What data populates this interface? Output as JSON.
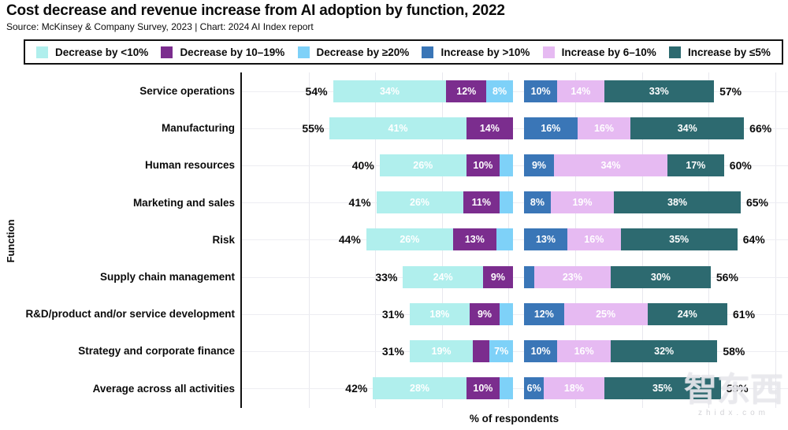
{
  "chart_data": {
    "type": "bar",
    "variant": "horizontal-diverging-stacked",
    "title": "Cost decrease and revenue increase from AI adoption by function, 2022",
    "source": "Source: McKinsey & Company Survey, 2023 | Chart: 2024 AI Index report",
    "xlabel": "% of respondents",
    "ylabel": "Function",
    "unit": "%",
    "axis_range_pct": [
      0,
      80
    ],
    "gridline_step_pct": 20,
    "grid": true,
    "legend_position": "top",
    "legend": [
      {
        "key": "decrease_lt10",
        "label": "Decrease by <10%",
        "color": "#b0efed"
      },
      {
        "key": "decrease_10_19",
        "label": "Decrease by 10–19%",
        "color": "#7b2d8e"
      },
      {
        "key": "decrease_ge20",
        "label": "Decrease by ≥20%",
        "color": "#7ed1f8"
      },
      {
        "key": "increase_gt10",
        "label": "Increase by >10%",
        "color": "#3a76b7"
      },
      {
        "key": "increase_6_10",
        "label": "Increase by 6–10%",
        "color": "#e6baf2"
      },
      {
        "key": "increase_le5",
        "label": "Increase by ≤5%",
        "color": "#2d6a70"
      }
    ],
    "categories": [
      "Service operations",
      "Manufacturing",
      "Human resources",
      "Marketing and sales",
      "Risk",
      "Supply chain management",
      "R&D/product and/or service development",
      "Strategy and corporate finance",
      "Average across all activities"
    ],
    "rows": [
      {
        "function": "Service operations",
        "decrease": {
          "total": 54,
          "total_label": "54%",
          "segments": [
            {
              "key": "decrease_lt10",
              "value": 34,
              "label": "34%"
            },
            {
              "key": "decrease_10_19",
              "value": 12,
              "label": "12%"
            },
            {
              "key": "decrease_ge20",
              "value": 8,
              "label": "8%"
            }
          ]
        },
        "increase": {
          "total": 57,
          "total_label": "57%",
          "segments": [
            {
              "key": "increase_gt10",
              "value": 10,
              "label": "10%"
            },
            {
              "key": "increase_6_10",
              "value": 14,
              "label": "14%"
            },
            {
              "key": "increase_le5",
              "value": 33,
              "label": "33%"
            }
          ]
        }
      },
      {
        "function": "Manufacturing",
        "decrease": {
          "total": 55,
          "total_label": "55%",
          "segments": [
            {
              "key": "decrease_lt10",
              "value": 41,
              "label": "41%"
            },
            {
              "key": "decrease_10_19",
              "value": 14,
              "label": "14%"
            }
          ]
        },
        "increase": {
          "total": 66,
          "total_label": "66%",
          "segments": [
            {
              "key": "increase_gt10",
              "value": 16,
              "label": "16%"
            },
            {
              "key": "increase_6_10",
              "value": 16,
              "label": "16%"
            },
            {
              "key": "increase_le5",
              "value": 34,
              "label": "34%"
            }
          ]
        }
      },
      {
        "function": "Human resources",
        "decrease": {
          "total": 40,
          "total_label": "40%",
          "segments": [
            {
              "key": "decrease_lt10",
              "value": 26,
              "label": "26%"
            },
            {
              "key": "decrease_10_19",
              "value": 10,
              "label": "10%"
            },
            {
              "key": "decrease_ge20",
              "value": 4,
              "label": ""
            }
          ]
        },
        "increase": {
          "total": 60,
          "total_label": "60%",
          "segments": [
            {
              "key": "increase_gt10",
              "value": 9,
              "label": "9%"
            },
            {
              "key": "increase_6_10",
              "value": 34,
              "label": "34%"
            },
            {
              "key": "increase_le5",
              "value": 17,
              "label": "17%"
            }
          ]
        }
      },
      {
        "function": "Marketing and sales",
        "decrease": {
          "total": 41,
          "total_label": "41%",
          "segments": [
            {
              "key": "decrease_lt10",
              "value": 26,
              "label": "26%"
            },
            {
              "key": "decrease_10_19",
              "value": 11,
              "label": "11%"
            },
            {
              "key": "decrease_ge20",
              "value": 4,
              "label": ""
            }
          ]
        },
        "increase": {
          "total": 65,
          "total_label": "65%",
          "segments": [
            {
              "key": "increase_gt10",
              "value": 8,
              "label": "8%"
            },
            {
              "key": "increase_6_10",
              "value": 19,
              "label": "19%"
            },
            {
              "key": "increase_le5",
              "value": 38,
              "label": "38%"
            }
          ]
        }
      },
      {
        "function": "Risk",
        "decrease": {
          "total": 44,
          "total_label": "44%",
          "segments": [
            {
              "key": "decrease_lt10",
              "value": 26,
              "label": "26%"
            },
            {
              "key": "decrease_10_19",
              "value": 13,
              "label": "13%"
            },
            {
              "key": "decrease_ge20",
              "value": 5,
              "label": ""
            }
          ]
        },
        "increase": {
          "total": 64,
          "total_label": "64%",
          "segments": [
            {
              "key": "increase_gt10",
              "value": 13,
              "label": "13%"
            },
            {
              "key": "increase_6_10",
              "value": 16,
              "label": "16%"
            },
            {
              "key": "increase_le5",
              "value": 35,
              "label": "35%"
            }
          ]
        }
      },
      {
        "function": "Supply chain management",
        "decrease": {
          "total": 33,
          "total_label": "33%",
          "segments": [
            {
              "key": "decrease_lt10",
              "value": 24,
              "label": "24%"
            },
            {
              "key": "decrease_10_19",
              "value": 9,
              "label": "9%"
            }
          ]
        },
        "increase": {
          "total": 56,
          "total_label": "56%",
          "segments": [
            {
              "key": "increase_gt10",
              "value": 3,
              "label": ""
            },
            {
              "key": "increase_6_10",
              "value": 23,
              "label": "23%"
            },
            {
              "key": "increase_le5",
              "value": 30,
              "label": "30%"
            }
          ]
        }
      },
      {
        "function": "R&D/product and/or service development",
        "decrease": {
          "total": 31,
          "total_label": "31%",
          "segments": [
            {
              "key": "decrease_lt10",
              "value": 18,
              "label": "18%"
            },
            {
              "key": "decrease_10_19",
              "value": 9,
              "label": "9%"
            },
            {
              "key": "decrease_ge20",
              "value": 4,
              "label": ""
            }
          ]
        },
        "increase": {
          "total": 61,
          "total_label": "61%",
          "segments": [
            {
              "key": "increase_gt10",
              "value": 12,
              "label": "12%"
            },
            {
              "key": "increase_6_10",
              "value": 25,
              "label": "25%"
            },
            {
              "key": "increase_le5",
              "value": 24,
              "label": "24%"
            }
          ]
        }
      },
      {
        "function": "Strategy and corporate finance",
        "decrease": {
          "total": 31,
          "total_label": "31%",
          "segments": [
            {
              "key": "decrease_lt10",
              "value": 19,
              "label": "19%"
            },
            {
              "key": "decrease_10_19",
              "value": 5,
              "label": ""
            },
            {
              "key": "decrease_ge20",
              "value": 7,
              "label": "7%"
            }
          ]
        },
        "increase": {
          "total": 58,
          "total_label": "58%",
          "segments": [
            {
              "key": "increase_gt10",
              "value": 10,
              "label": "10%"
            },
            {
              "key": "increase_6_10",
              "value": 16,
              "label": "16%"
            },
            {
              "key": "increase_le5",
              "value": 32,
              "label": "32%"
            }
          ]
        }
      },
      {
        "function": "Average across all activities",
        "decrease": {
          "total": 42,
          "total_label": "42%",
          "segments": [
            {
              "key": "decrease_lt10",
              "value": 28,
              "label": "28%"
            },
            {
              "key": "decrease_10_19",
              "value": 10,
              "label": "10%"
            },
            {
              "key": "decrease_ge20",
              "value": 4,
              "label": ""
            }
          ]
        },
        "increase": {
          "total": 59,
          "total_label": "59%",
          "segments": [
            {
              "key": "increase_gt10",
              "value": 6,
              "label": "6%"
            },
            {
              "key": "increase_6_10",
              "value": 18,
              "label": "18%"
            },
            {
              "key": "increase_le5",
              "value": 35,
              "label": "35%"
            }
          ]
        }
      }
    ]
  },
  "watermark": {
    "text": "智东西",
    "subtext": "zhidx.com"
  }
}
